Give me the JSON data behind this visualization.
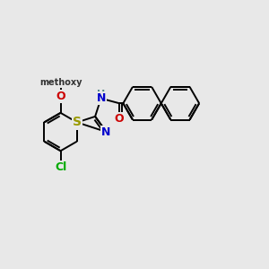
{
  "bg_color": "#e8e8e8",
  "bond_color": "#000000",
  "bond_width": 1.4,
  "S_color": "#999900",
  "N_color": "#0000cc",
  "O_color": "#cc0000",
  "Cl_color": "#00aa00",
  "NH_color": "#558888",
  "font_size": 9,
  "figsize": [
    3.0,
    3.0
  ],
  "dpi": 100,
  "xlim": [
    0.0,
    10.0
  ],
  "ylim": [
    0.5,
    7.5
  ]
}
